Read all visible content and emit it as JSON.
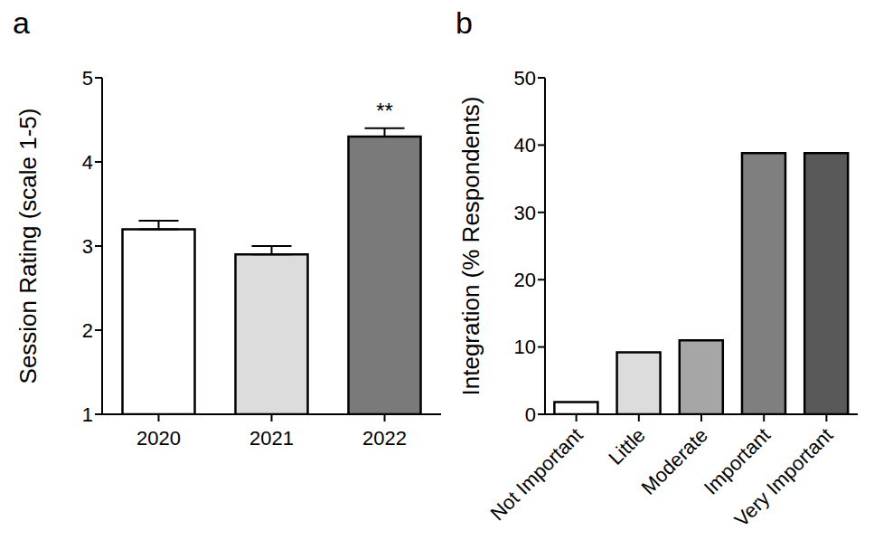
{
  "chart_data": [
    {
      "type": "bar",
      "title": "a",
      "categories": [
        "2020",
        "2021",
        "2022"
      ],
      "values": [
        3.2,
        2.9,
        4.3
      ],
      "errors": [
        0.1,
        0.1,
        0.1
      ],
      "colors": [
        "#ffffff",
        "#dcdcdc",
        "#7a7a7a"
      ],
      "ylabel": "Session Rating (scale 1-5)",
      "ylim": [
        1,
        5
      ],
      "yticks": [
        1,
        2,
        3,
        4,
        5
      ],
      "grid": false,
      "annotations": [
        {
          "category": "2022",
          "text": "**"
        }
      ]
    },
    {
      "type": "bar",
      "title": "b",
      "categories": [
        "Not Important",
        "Little",
        "Moderate",
        "Important",
        "Very Important"
      ],
      "values": [
        1.8,
        9.2,
        11,
        38.8,
        38.8
      ],
      "colors": [
        "#ffffff",
        "#dcdcdc",
        "#a6a6a6",
        "#7f7f7f",
        "#595959"
      ],
      "ylabel": "Integration (% Respondents)",
      "ylim": [
        0,
        50
      ],
      "yticks": [
        0,
        10,
        20,
        30,
        40,
        50
      ],
      "grid": false
    }
  ]
}
